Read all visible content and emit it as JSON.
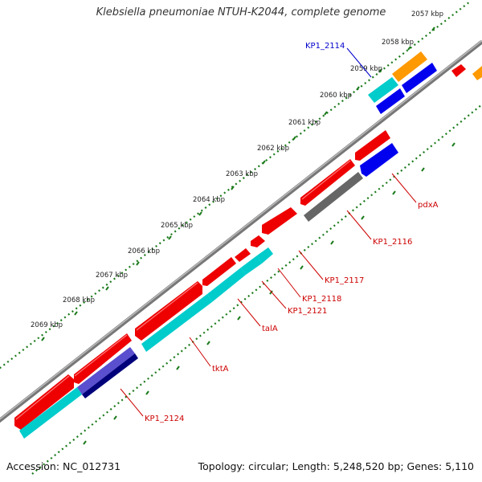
{
  "title": "Klebsiella pneumoniae NTUH-K2044, complete genome",
  "footer": {
    "accession": "Accession: NC_012731",
    "summary": "Topology: circular; Length: 5,248,520 bp; Genes: 5,110"
  },
  "scale_labels": [
    "2057 kbp",
    "2058 kbp",
    "2059 kbp",
    "2060 kbp",
    "2061 kbp",
    "2062 kbp",
    "2063 kbp",
    "2064 kbp",
    "2065 kbp",
    "2066 kbp",
    "2067 kbp",
    "2068 kbp",
    "2069 kbp"
  ],
  "gene_labels": [
    "KP1_2114",
    "pdxA",
    "KP1_2116",
    "KP1_2117",
    "KP1_2118",
    "KP1_2121",
    "talA",
    "tktA",
    "KP1_2124"
  ],
  "colors": {
    "backbone": "#808080",
    "forward_gene": "#ee0000",
    "cyan_gene": "#00cccc",
    "blue_gene": "#0000ee",
    "orange_gene": "#ff9900",
    "gray_gene": "#666666",
    "slate_gene": "#5a4fcf",
    "navy_gene": "#00007a",
    "tick": "#1a7a1a",
    "label_red": "#cc0000",
    "label_blue": "#0000cc"
  }
}
